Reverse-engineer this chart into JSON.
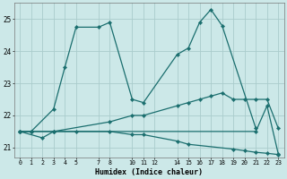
{
  "xlabel": "Humidex (Indice chaleur)",
  "background_color": "#cce8e8",
  "grid_color": "#aacccc",
  "line_color": "#1a6e6e",
  "xlim": [
    -0.5,
    23.5
  ],
  "ylim": [
    20.7,
    25.5
  ],
  "yticks": [
    21,
    22,
    23,
    24,
    25
  ],
  "xtick_labels": [
    "0",
    "1",
    "2",
    "3",
    "4",
    "5",
    "7",
    "8",
    "10",
    "11",
    "12",
    "14",
    "15",
    "16",
    "17",
    "18",
    "19",
    "20",
    "21",
    "22",
    "23"
  ],
  "xtick_positions": [
    0,
    1,
    2,
    3,
    4,
    5,
    7,
    8,
    10,
    11,
    12,
    14,
    15,
    16,
    17,
    18,
    19,
    20,
    21,
    22,
    23
  ],
  "series": [
    {
      "x": [
        0,
        1,
        3,
        4,
        5,
        7,
        8,
        10,
        11,
        14,
        15,
        16,
        17,
        18,
        21
      ],
      "y": [
        21.5,
        21.5,
        22.2,
        23.5,
        24.75,
        24.75,
        24.9,
        22.5,
        22.4,
        23.9,
        24.1,
        24.9,
        25.3,
        24.8,
        21.6
      ]
    },
    {
      "x": [
        0,
        1,
        3,
        8,
        10,
        11,
        14,
        15,
        16,
        17,
        18,
        19,
        20,
        21,
        22,
        23
      ],
      "y": [
        21.5,
        21.5,
        21.5,
        21.8,
        22.0,
        22.0,
        22.3,
        22.4,
        22.5,
        22.6,
        22.7,
        22.5,
        22.5,
        22.5,
        22.5,
        21.6
      ]
    },
    {
      "x": [
        0,
        2,
        3,
        21,
        22,
        23
      ],
      "y": [
        21.5,
        21.3,
        21.5,
        21.5,
        22.3,
        20.8
      ]
    },
    {
      "x": [
        0,
        1,
        3,
        5,
        8,
        10,
        11,
        14,
        15,
        19,
        20,
        21,
        22,
        23
      ],
      "y": [
        21.5,
        21.5,
        21.5,
        21.5,
        21.5,
        21.4,
        21.4,
        21.2,
        21.1,
        20.95,
        20.9,
        20.85,
        20.82,
        20.78
      ]
    }
  ]
}
